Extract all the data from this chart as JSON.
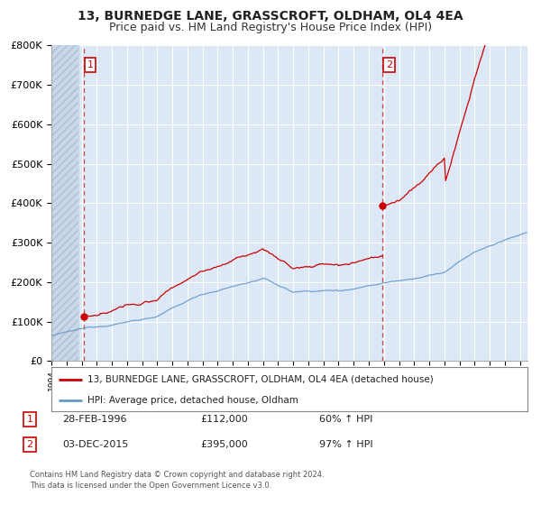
{
  "title": "13, BURNEDGE LANE, GRASSCROFT, OLDHAM, OL4 4EA",
  "subtitle": "Price paid vs. HM Land Registry's House Price Index (HPI)",
  "ylim": [
    0,
    800000
  ],
  "yticks": [
    0,
    100000,
    200000,
    300000,
    400000,
    500000,
    600000,
    700000,
    800000
  ],
  "ytick_labels": [
    "£0",
    "£100K",
    "£200K",
    "£300K",
    "£400K",
    "£500K",
    "£600K",
    "£700K",
    "£800K"
  ],
  "xlim_start": 1994.0,
  "xlim_end": 2025.5,
  "sale1_year": 1996.167,
  "sale1_price": 112000,
  "sale2_year": 2015.917,
  "sale2_price": 395000,
  "legend_label_red": "13, BURNEDGE LANE, GRASSCROFT, OLDHAM, OL4 4EA (detached house)",
  "legend_label_blue": "HPI: Average price, detached house, Oldham",
  "note1_num": "1",
  "note1_date": "28-FEB-1996",
  "note1_price": "£112,000",
  "note1_hpi": "60% ↑ HPI",
  "note2_num": "2",
  "note2_date": "03-DEC-2015",
  "note2_price": "£395,000",
  "note2_hpi": "97% ↑ HPI",
  "footer": "Contains HM Land Registry data © Crown copyright and database right 2024.\nThis data is licensed under the Open Government Licence v3.0.",
  "red_color": "#cc0000",
  "blue_color": "#6699cc",
  "bg_plot": "#dce8f5",
  "grid_color": "#ffffff",
  "title_fontsize": 10,
  "subtitle_fontsize": 9
}
